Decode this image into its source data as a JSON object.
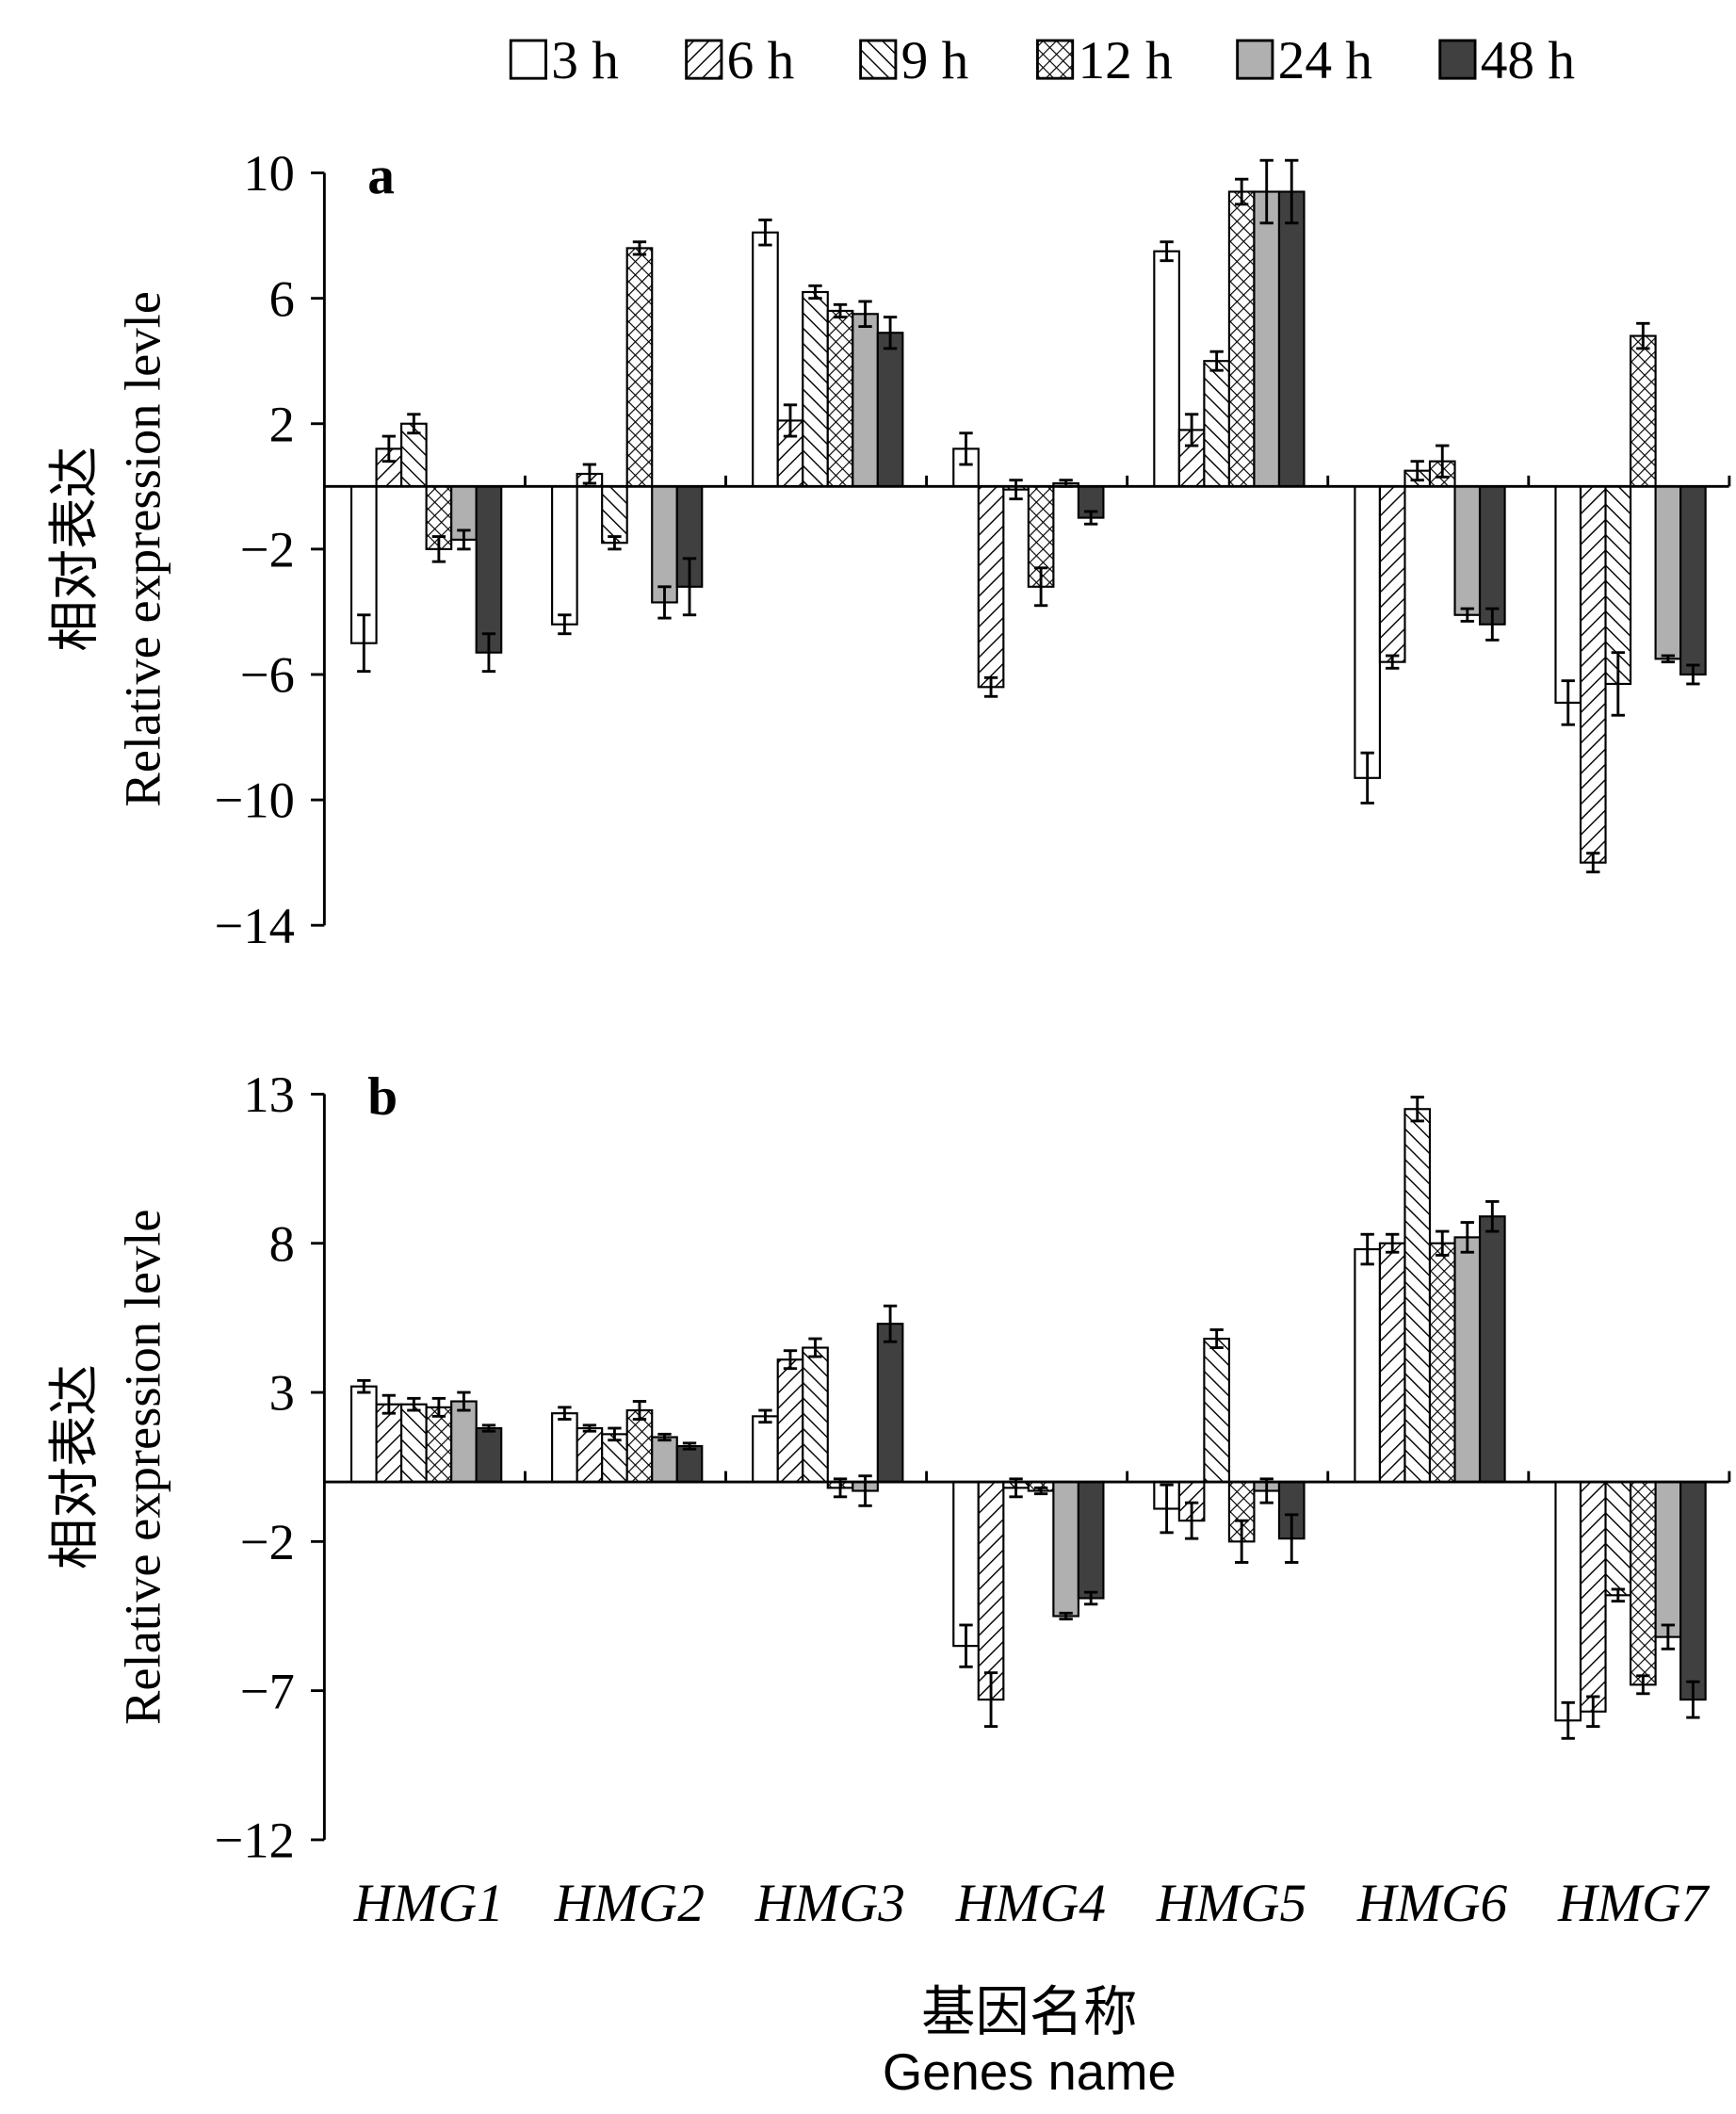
{
  "chart_data": {
    "type": "bar",
    "legend": [
      "3 h",
      "6 h",
      "9 h",
      "12 h",
      "24 h",
      "48 h"
    ],
    "legend_placement": "top",
    "categories": [
      "HMG1",
      "HMG2",
      "HMG3",
      "HMG4",
      "HMG5",
      "HMG6",
      "HMG7"
    ],
    "xlabel_cn": "基因名称",
    "xlabel": "Genes name",
    "ylabel_cn": "相对表达",
    "ylabel": "Relative expression levle",
    "series_colors": [
      "#ffffff",
      "hatch-forward",
      "hatch-back",
      "crosshatch",
      "#b0b0b0",
      "#404040"
    ],
    "panels": [
      {
        "label": "a",
        "ylim": [
          -14,
          10
        ],
        "yticks": [
          10,
          6,
          2,
          -2,
          -6,
          -10,
          -14
        ],
        "series": [
          {
            "name": "3 h",
            "values": [
              -5.0,
              -4.4,
              8.1,
              1.2,
              7.5,
              -9.3,
              -6.9
            ],
            "errors": [
              0.9,
              0.3,
              0.4,
              0.5,
              0.3,
              0.8,
              0.7
            ]
          },
          {
            "name": "6 h",
            "values": [
              1.2,
              0.4,
              2.1,
              -6.4,
              1.8,
              -5.6,
              -12.0
            ],
            "errors": [
              0.4,
              0.3,
              0.5,
              0.3,
              0.5,
              0.2,
              0.3
            ]
          },
          {
            "name": "9 h",
            "values": [
              2.0,
              -1.8,
              6.2,
              -0.1,
              4.0,
              0.5,
              -6.3
            ],
            "errors": [
              0.3,
              0.2,
              0.2,
              0.3,
              0.3,
              0.3,
              1.0
            ]
          },
          {
            "name": "12 h",
            "values": [
              -2.0,
              7.6,
              5.6,
              -3.2,
              9.4,
              0.8,
              4.8
            ],
            "errors": [
              0.4,
              0.2,
              0.2,
              0.6,
              0.4,
              0.5,
              0.4
            ]
          },
          {
            "name": "24 h",
            "values": [
              -1.7,
              -3.7,
              5.5,
              0.1,
              9.4,
              -4.1,
              -5.5
            ],
            "errors": [
              0.3,
              0.5,
              0.4,
              0.1,
              1.0,
              0.2,
              0.1
            ]
          },
          {
            "name": "48 h",
            "values": [
              -5.3,
              -3.2,
              4.9,
              -1.0,
              9.4,
              -4.4,
              -6.0
            ],
            "errors": [
              0.6,
              0.9,
              0.5,
              0.2,
              1.0,
              0.5,
              0.3
            ]
          }
        ]
      },
      {
        "label": "b",
        "ylim": [
          -12,
          13
        ],
        "yticks": [
          13,
          8,
          3,
          -2,
          -7,
          -12
        ],
        "series": [
          {
            "name": "3 h",
            "values": [
              3.2,
              2.3,
              2.2,
              -5.5,
              -0.9,
              7.8,
              -8.0
            ],
            "errors": [
              0.2,
              0.2,
              0.2,
              0.7,
              0.8,
              0.5,
              0.6
            ]
          },
          {
            "name": "6 h",
            "values": [
              2.6,
              1.8,
              4.1,
              -7.3,
              -1.3,
              8.0,
              -7.7
            ],
            "errors": [
              0.3,
              0.1,
              0.3,
              0.9,
              0.6,
              0.3,
              0.5
            ]
          },
          {
            "name": "9 h",
            "values": [
              2.6,
              1.6,
              4.5,
              -0.2,
              4.8,
              12.5,
              -3.8
            ],
            "errors": [
              0.2,
              0.2,
              0.3,
              0.3,
              0.3,
              0.4,
              0.2
            ]
          },
          {
            "name": "12 h",
            "values": [
              2.5,
              2.4,
              -0.2,
              -0.3,
              -2.0,
              8.0,
              -6.8
            ],
            "errors": [
              0.3,
              0.3,
              0.3,
              0.1,
              0.7,
              0.4,
              0.3
            ]
          },
          {
            "name": "24 h",
            "values": [
              2.7,
              1.5,
              -0.3,
              -4.5,
              -0.3,
              8.2,
              -5.2
            ],
            "errors": [
              0.3,
              0.1,
              0.5,
              0.1,
              0.4,
              0.5,
              0.4
            ]
          },
          {
            "name": "48 h",
            "values": [
              1.8,
              1.2,
              5.3,
              -3.9,
              -1.9,
              8.9,
              -7.3
            ],
            "errors": [
              0.1,
              0.1,
              0.6,
              0.2,
              0.8,
              0.5,
              0.6
            ]
          }
        ]
      }
    ]
  }
}
